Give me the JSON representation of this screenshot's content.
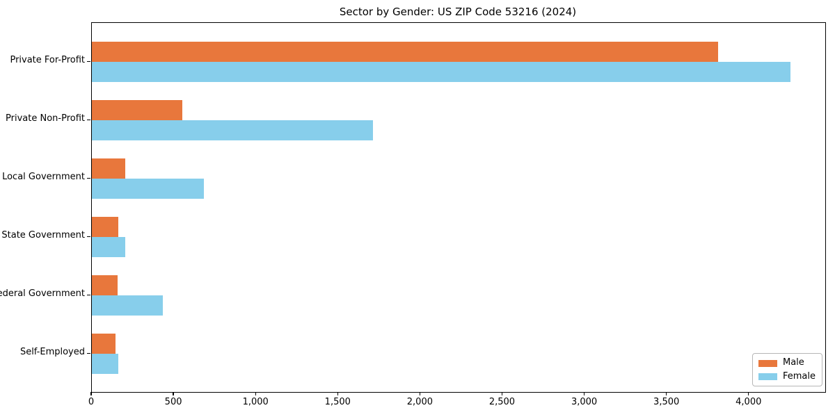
{
  "chart_data": {
    "type": "bar",
    "orientation": "horizontal",
    "title": "Sector by Gender: US ZIP Code 53216 (2024)",
    "categories": [
      "Private For-Profit",
      "Private Non-Profit",
      "Local Government",
      "State Government",
      "Federal Government",
      "Self-Employed"
    ],
    "series": [
      {
        "name": "Male",
        "color": "#e8773c",
        "values": [
          3810,
          550,
          205,
          160,
          155,
          145
        ]
      },
      {
        "name": "Female",
        "color": "#87ceeb",
        "values": [
          4250,
          1710,
          680,
          205,
          430,
          160
        ]
      }
    ],
    "xlabel": "",
    "ylabel": "",
    "xlim": [
      0,
      4462.5
    ],
    "x_ticks": [
      {
        "value": 0,
        "label": "0"
      },
      {
        "value": 500,
        "label": "500"
      },
      {
        "value": 1000,
        "label": "1,000"
      },
      {
        "value": 1500,
        "label": "1,500"
      },
      {
        "value": 2000,
        "label": "2,000"
      },
      {
        "value": 2500,
        "label": "2,500"
      },
      {
        "value": 3000,
        "label": "3,000"
      },
      {
        "value": 3500,
        "label": "3,500"
      },
      {
        "value": 4000,
        "label": "4,000"
      }
    ],
    "grid": false,
    "legend": {
      "position": "lower right"
    },
    "colors": {
      "male": "#e8773c",
      "female": "#87ceeb",
      "axis": "#000000",
      "legend_border": "#b6b6b6",
      "background": "#ffffff"
    }
  }
}
